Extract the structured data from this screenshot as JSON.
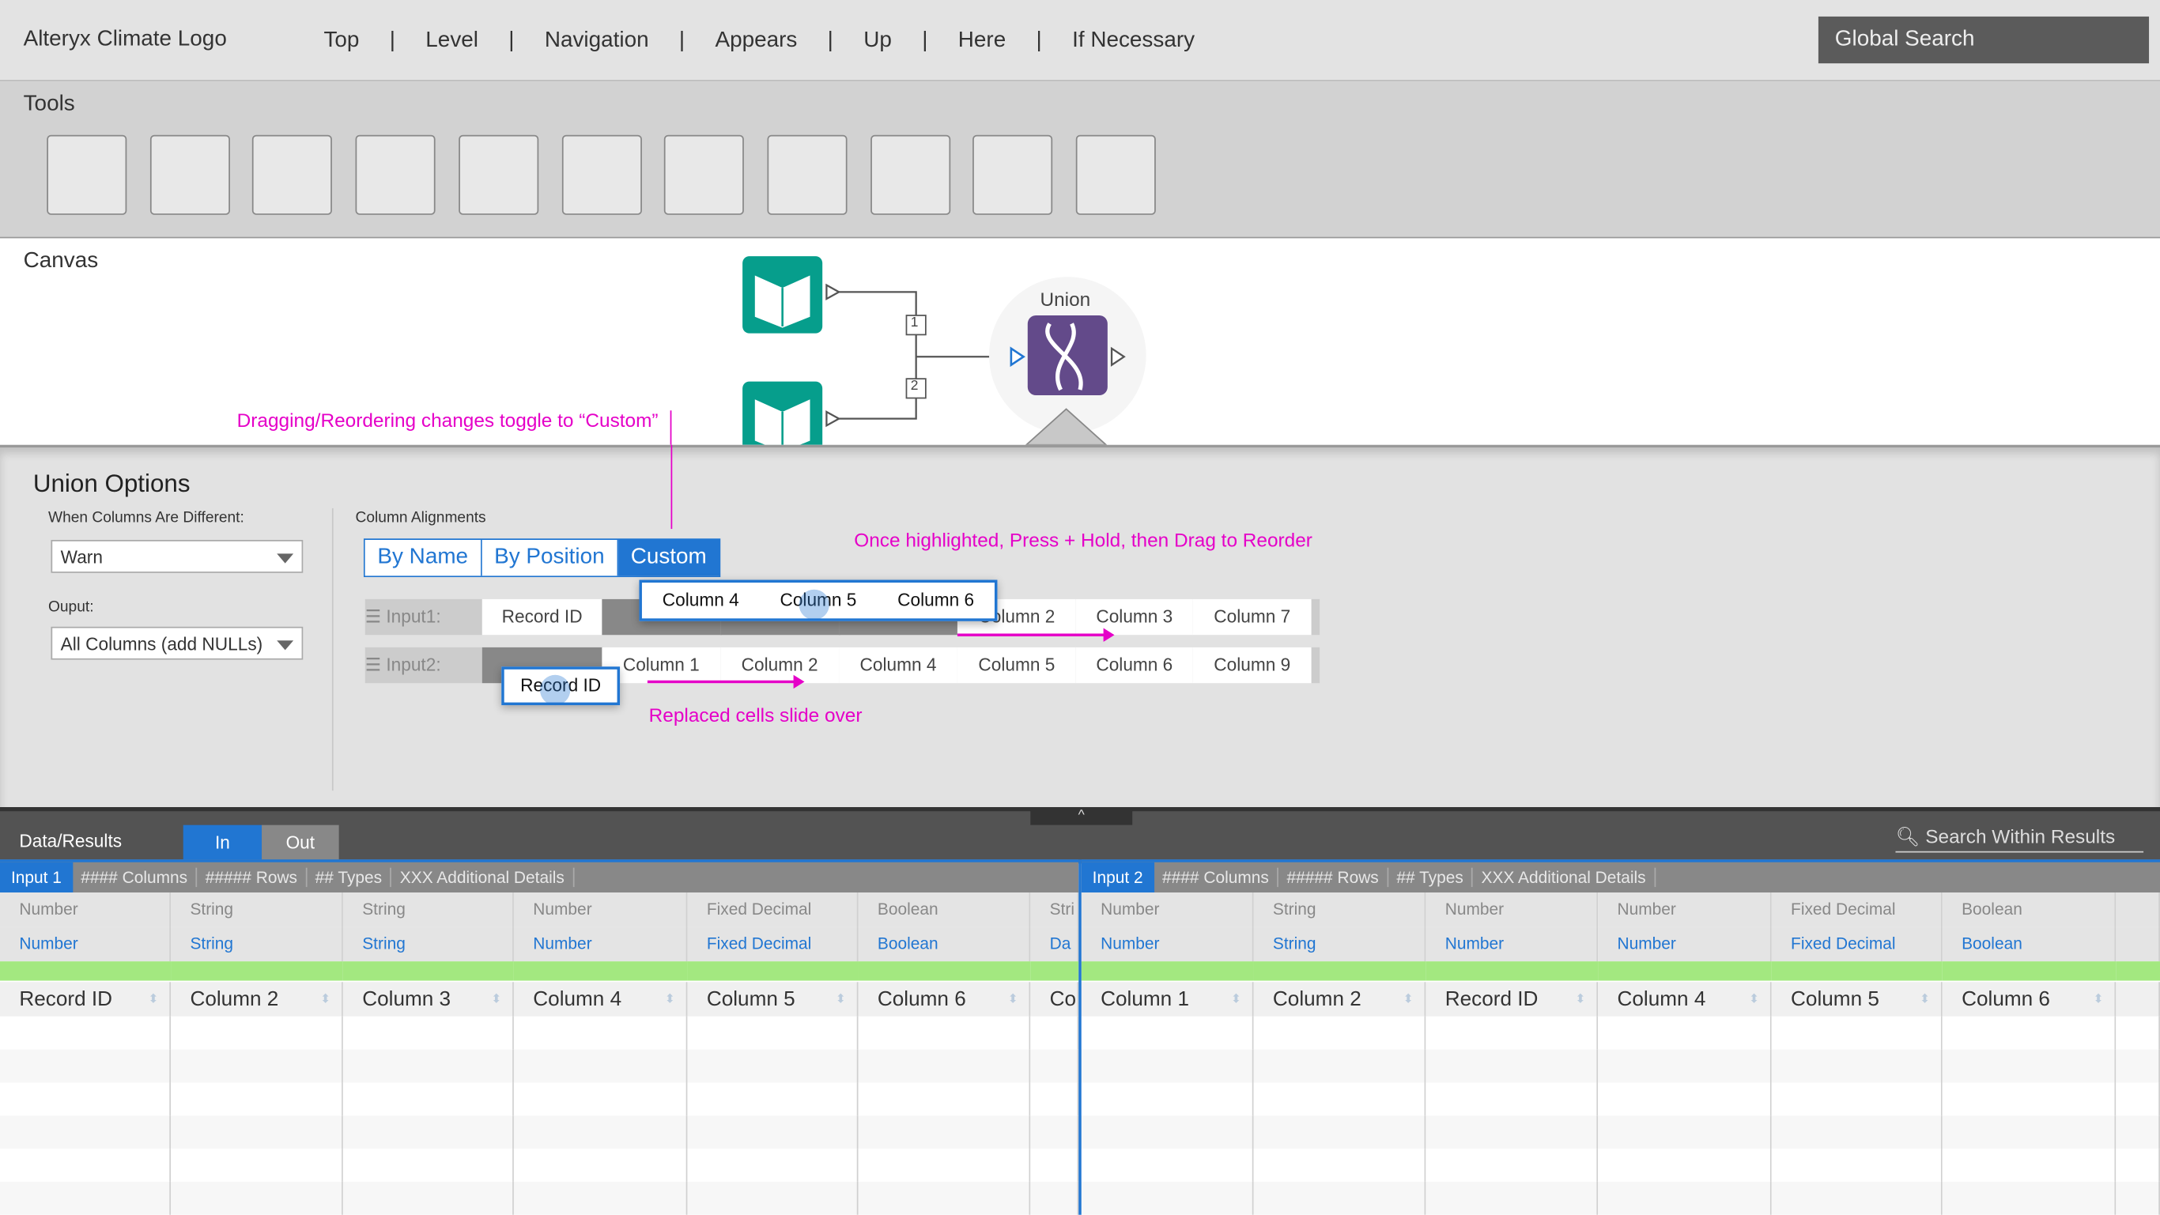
{
  "topbar": {
    "logo": "Alteryx Climate Logo",
    "nav": [
      "Top",
      "Level",
      "Navigation",
      "Appears",
      "Up",
      "Here",
      "If Necessary"
    ],
    "search": "Global Search"
  },
  "tools": {
    "label": "Tools",
    "count": 11
  },
  "canvas": {
    "label": "Canvas",
    "union_label": "Union",
    "conn1": "1",
    "conn2": "2",
    "input_icon": "book-icon",
    "union_icon": "dna-icon",
    "brand_teal": "#069e8c",
    "brand_purple": "#634a8a"
  },
  "notes": {
    "drag": "Dragging/Reordering changes toggle to “Custom”",
    "highlight": "Once highlighted, Press + Hold, then Drag to Reorder",
    "slide": "Replaced cells slide over",
    "color": "#e500c8"
  },
  "options": {
    "title": "Union Options",
    "diff_label": "When Columns Are Different:",
    "diff_value": "Warn",
    "output_label": "Ouput:",
    "output_value": "All Columns (add NULLs)",
    "align_label": "Column Alignments",
    "segments": [
      "By Name",
      "By Position",
      "Custom"
    ],
    "selected_segment": "Custom",
    "input1": {
      "label": "Input1:",
      "cells": [
        "Record ID",
        "",
        "",
        "",
        "Column 2",
        "Column 3",
        "Column 7"
      ]
    },
    "input2": {
      "label": "Input2:",
      "cells": [
        "",
        "Column 1",
        "Column 2",
        "Column 4",
        "Column 5",
        "Column 6",
        "Column 9"
      ]
    },
    "drag1": [
      "Column 4",
      "Column 5",
      "Column 6"
    ],
    "drag2": "Record ID"
  },
  "results": {
    "label": "Data/Results",
    "tabs": [
      "In",
      "Out"
    ],
    "active_tab": "In",
    "search": "Search Within Results",
    "left": {
      "input": "Input 1",
      "meta": [
        "#### Columns",
        "##### Rows",
        "## Types",
        "XXX Additional Details"
      ],
      "types": [
        "Number",
        "String",
        "String",
        "Number",
        "Fixed Decimal",
        "Boolean",
        "Stri"
      ],
      "types2": [
        "Number",
        "String",
        "String",
        "Number",
        "Fixed Decimal",
        "Boolean",
        "Da"
      ],
      "cols": [
        "Record ID",
        "Column 2",
        "Column 3",
        "Column 4",
        "Column 5",
        "Column 6",
        "Co"
      ]
    },
    "right": {
      "input": "Input 2",
      "meta": [
        "#### Columns",
        "##### Rows",
        "## Types",
        "XXX Additional Details"
      ],
      "types": [
        "Number",
        "String",
        "Number",
        "Number",
        "Fixed Decimal",
        "Boolean",
        ""
      ],
      "types2": [
        "Number",
        "String",
        "Number",
        "Number",
        "Fixed Decimal",
        "Boolean",
        ""
      ],
      "cols": [
        "Column 1",
        "Column 2",
        "Record ID",
        "Column 4",
        "Column 5",
        "Column 6",
        ""
      ]
    }
  }
}
